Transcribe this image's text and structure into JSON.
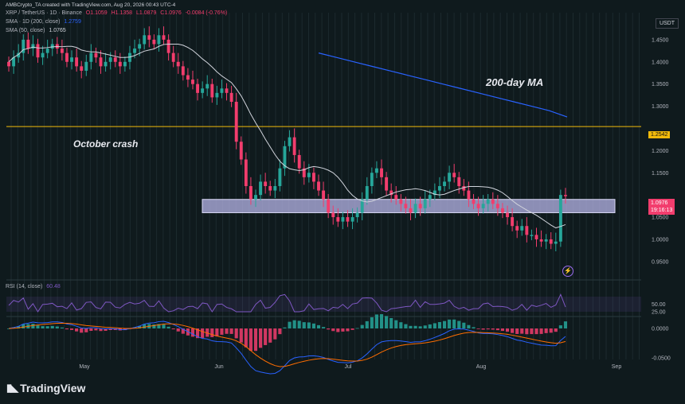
{
  "credit": "AMBCrypto_TA created with TradingView.com, Aug 20, 2026 00:43 UTC-4",
  "header": {
    "symbol_line": "XRP / TetherUS · 1D · Binance",
    "ohlc": {
      "o": "O1.1059",
      "h": "H1.1358",
      "l": "L1.0879",
      "c": "C1.0976",
      "chg": "-0.0084 (-0.76%)"
    },
    "sma200_label": "SMA · 1D (200, close)",
    "sma200_value": "1.2759",
    "sma50_label": "SMA (50, close)",
    "sma50_value": "1.0765",
    "rsi_label": "RSI (14, close)",
    "rsi_value": "60.48"
  },
  "currency": "USDT",
  "annotations": {
    "ma_label": "200-day MA",
    "crash_label": "October crash"
  },
  "price_marks": {
    "level": "1.2542",
    "last": "1.0976",
    "countdown": "19:16:13"
  },
  "logo_text": "TradingView",
  "colors": {
    "bg": "#0f1a1d",
    "up": "#26a69a",
    "down": "#f23d6d",
    "sma50": "#d1d4dc",
    "sma200": "#2962ff",
    "level": "#f0b90b",
    "rsi": "#7e57c2",
    "macd": "#2962ff",
    "signal": "#ff6d00",
    "zone": "#b7b6e8"
  },
  "chart_data": {
    "type": "candlestick",
    "x_tick_labels": [
      "May",
      "Jun",
      "Jul",
      "Aug",
      "Sep"
    ],
    "y_tick_labels": [
      "1.4500",
      "1.4000",
      "1.3500",
      "1.3000",
      "1.2000",
      "1.1500",
      "1.0500",
      "1.0000",
      "0.9500"
    ],
    "ylim": [
      0.93,
      1.5
    ],
    "resistance_level": 1.2542,
    "zone": [
      1.06,
      1.09
    ],
    "close_series": [
      1.39,
      1.41,
      1.42,
      1.45,
      1.43,
      1.44,
      1.41,
      1.42,
      1.43,
      1.44,
      1.43,
      1.42,
      1.4,
      1.41,
      1.39,
      1.38,
      1.4,
      1.42,
      1.41,
      1.39,
      1.4,
      1.41,
      1.4,
      1.39,
      1.4,
      1.42,
      1.43,
      1.44,
      1.46,
      1.45,
      1.44,
      1.46,
      1.45,
      1.42,
      1.4,
      1.39,
      1.37,
      1.36,
      1.35,
      1.33,
      1.34,
      1.35,
      1.32,
      1.33,
      1.34,
      1.33,
      1.31,
      1.22,
      1.18,
      1.12,
      1.09,
      1.1,
      1.13,
      1.12,
      1.11,
      1.12,
      1.16,
      1.21,
      1.23,
      1.19,
      1.16,
      1.14,
      1.15,
      1.13,
      1.11,
      1.09,
      1.06,
      1.05,
      1.04,
      1.05,
      1.04,
      1.05,
      1.06,
      1.09,
      1.12,
      1.15,
      1.16,
      1.14,
      1.11,
      1.1,
      1.09,
      1.08,
      1.07,
      1.06,
      1.08,
      1.07,
      1.09,
      1.1,
      1.11,
      1.12,
      1.13,
      1.15,
      1.14,
      1.12,
      1.11,
      1.09,
      1.08,
      1.07,
      1.08,
      1.09,
      1.08,
      1.07,
      1.06,
      1.05,
      1.03,
      1.02,
      1.03,
      1.01,
      1.01,
      1.0,
      0.995,
      1.0,
      0.99,
      0.995,
      1.1,
      1.0976
    ],
    "sma200_series": [
      1.42,
      1.41,
      1.4,
      1.39,
      1.38,
      1.37,
      1.36,
      1.35,
      1.34,
      1.33,
      1.32,
      1.31,
      1.3,
      1.29,
      1.2759
    ],
    "rsi_levels": [
      "50.00",
      "25.00"
    ],
    "macd_levels": [
      "0.0000",
      "-0.0500"
    ]
  }
}
